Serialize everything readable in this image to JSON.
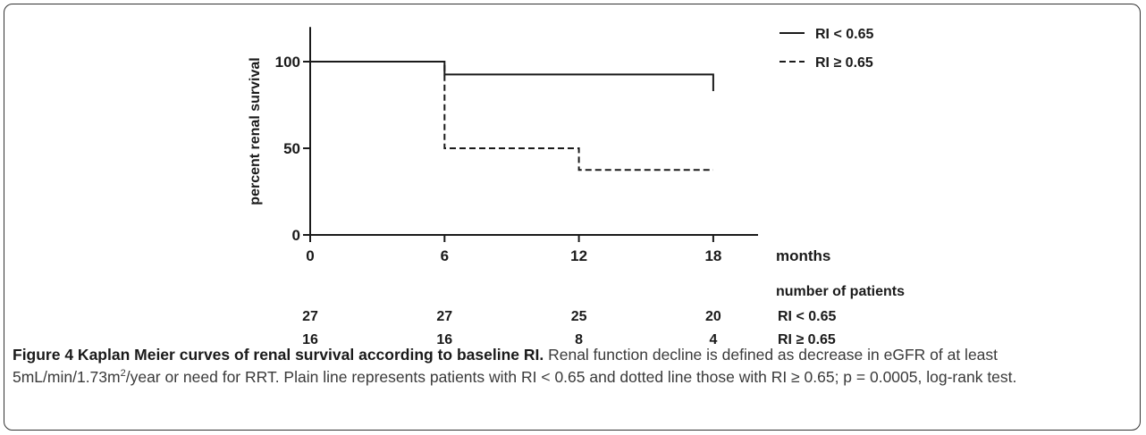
{
  "chart_data": {
    "type": "line",
    "subtype": "kaplan-meier step",
    "ylabel": "percent renal survival",
    "xlabel": "months",
    "xlim": [
      0,
      20
    ],
    "ylim": [
      0,
      120
    ],
    "x_ticks": [
      0,
      6,
      12,
      18
    ],
    "y_ticks": [
      0,
      50,
      100
    ],
    "grid": false,
    "legend_position": "top-right",
    "series": [
      {
        "name": "RI < 0.65",
        "line_style": "solid",
        "steps": [
          [
            0,
            100
          ],
          [
            6,
            100
          ],
          [
            6,
            92.6
          ],
          [
            18,
            92.6
          ],
          [
            18,
            83
          ]
        ]
      },
      {
        "name": "RI ≥ 0.65",
        "line_style": "dashed",
        "steps": [
          [
            0,
            100
          ],
          [
            6,
            100
          ],
          [
            6,
            50
          ],
          [
            12,
            50
          ],
          [
            12,
            37.5
          ],
          [
            18,
            37.5
          ]
        ]
      }
    ],
    "risk_table": {
      "header": "number of patients",
      "times": [
        0,
        6,
        12,
        18
      ],
      "rows": [
        {
          "label": "RI < 0.65",
          "counts": [
            "27",
            "27",
            "25",
            "20"
          ]
        },
        {
          "label": "RI ≥ 0.65",
          "counts": [
            "16",
            "16",
            "8",
            "4"
          ]
        }
      ]
    }
  },
  "caption": {
    "title": "Figure 4 Kaplan Meier curves of renal survival according to baseline RI.",
    "text_part1": " Renal function decline is defined as decrease in eGFR of at least 5mL/min/1.73m",
    "superscript": "2",
    "text_part2": "/year or need for RRT. Plain line represents patients with RI < 0.65 and dotted line those with RI ≥ 0.65; p = 0.0005, log-rank test."
  },
  "colors": {
    "line": "#1a1a1a",
    "caption_text": "#3a3a3a",
    "border": "#333333"
  }
}
